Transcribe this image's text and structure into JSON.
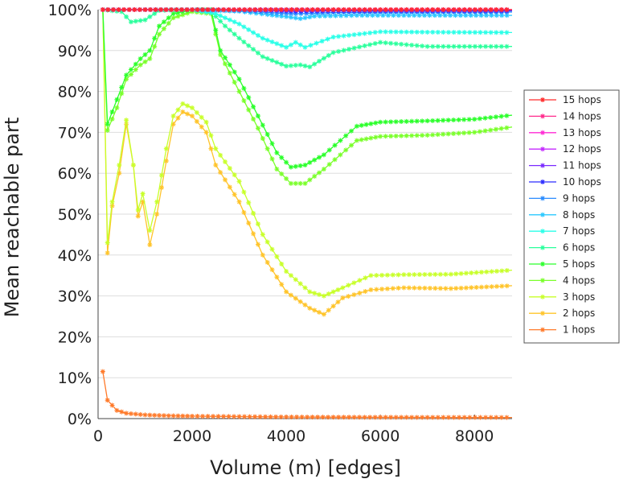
{
  "chart_data": {
    "type": "line",
    "xlabel": "Volume (m) [edges]",
    "ylabel": "Mean reachable part",
    "xlim": [
      0,
      8800
    ],
    "ylim": [
      0,
      100
    ],
    "x_ticks": [
      "0",
      "2000",
      "4000",
      "6000",
      "8000"
    ],
    "y_ticks": [
      "0%",
      "10%",
      "20%",
      "30%",
      "40%",
      "50%",
      "60%",
      "70%",
      "80%",
      "90%",
      "100%"
    ],
    "grid": "horizontal",
    "legend_position": "right",
    "series": [
      {
        "name": "15 hops",
        "color": "#ff2a2a",
        "points": [
          [
            100,
            100
          ],
          [
            1000,
            100
          ],
          [
            2000,
            100
          ],
          [
            3000,
            100
          ],
          [
            4000,
            100
          ],
          [
            5000,
            100
          ],
          [
            6000,
            100
          ],
          [
            7000,
            100
          ],
          [
            8800,
            100
          ]
        ]
      },
      {
        "name": "14 hops",
        "color": "#ff2a8c",
        "points": [
          [
            100,
            100
          ],
          [
            1000,
            100
          ],
          [
            2000,
            100
          ],
          [
            3000,
            100
          ],
          [
            4000,
            100
          ],
          [
            5000,
            100
          ],
          [
            6000,
            100
          ],
          [
            7000,
            100
          ],
          [
            8800,
            100
          ]
        ]
      },
      {
        "name": "13 hops",
        "color": "#ff2ad4",
        "points": [
          [
            100,
            100
          ],
          [
            1000,
            100
          ],
          [
            2000,
            100
          ],
          [
            3000,
            100
          ],
          [
            4000,
            100
          ],
          [
            5000,
            100
          ],
          [
            6000,
            100
          ],
          [
            7000,
            100
          ],
          [
            8800,
            100
          ]
        ]
      },
      {
        "name": "12 hops",
        "color": "#c42aff",
        "points": [
          [
            100,
            100
          ],
          [
            1000,
            100
          ],
          [
            2000,
            100
          ],
          [
            3000,
            100
          ],
          [
            4000,
            100
          ],
          [
            5000,
            100
          ],
          [
            6000,
            100
          ],
          [
            7000,
            100
          ],
          [
            8800,
            100
          ]
        ]
      },
      {
        "name": "11 hops",
        "color": "#7a2aff",
        "points": [
          [
            100,
            100
          ],
          [
            1000,
            100
          ],
          [
            2000,
            100
          ],
          [
            3000,
            100
          ],
          [
            3800,
            99.9
          ],
          [
            5000,
            99.9
          ],
          [
            6000,
            99.9
          ],
          [
            7000,
            99.9
          ],
          [
            8800,
            99.9
          ]
        ]
      },
      {
        "name": "10 hops",
        "color": "#2a2aff",
        "points": [
          [
            100,
            100
          ],
          [
            1000,
            100
          ],
          [
            2000,
            100
          ],
          [
            3000,
            100
          ],
          [
            3800,
            99.8
          ],
          [
            4200,
            99.6
          ],
          [
            5000,
            99.7
          ],
          [
            6000,
            99.7
          ],
          [
            7000,
            99.7
          ],
          [
            8800,
            99.7
          ]
        ]
      },
      {
        "name": "9 hops",
        "color": "#2a8cff",
        "points": [
          [
            100,
            100
          ],
          [
            1000,
            100
          ],
          [
            2000,
            100
          ],
          [
            3000,
            99.8
          ],
          [
            3800,
            99.2
          ],
          [
            4200,
            99
          ],
          [
            5000,
            99.3
          ],
          [
            6000,
            99.4
          ],
          [
            7000,
            99.4
          ],
          [
            8800,
            99.4
          ]
        ]
      },
      {
        "name": "8 hops",
        "color": "#2ac8ff",
        "points": [
          [
            100,
            100
          ],
          [
            1000,
            100
          ],
          [
            2000,
            100
          ],
          [
            2500,
            99.8
          ],
          [
            3000,
            99.6
          ],
          [
            3600,
            98.8
          ],
          [
            4000,
            98.3
          ],
          [
            4300,
            97.8
          ],
          [
            4600,
            98.4
          ],
          [
            5500,
            98.6
          ],
          [
            6500,
            98.6
          ],
          [
            8800,
            98.6
          ]
        ]
      },
      {
        "name": "7 hops",
        "color": "#2affe8",
        "points": [
          [
            100,
            100
          ],
          [
            1000,
            100
          ],
          [
            2000,
            100
          ],
          [
            2500,
            99
          ],
          [
            3000,
            96.5
          ],
          [
            3500,
            93
          ],
          [
            4000,
            90.8
          ],
          [
            4200,
            92
          ],
          [
            4400,
            90.8
          ],
          [
            5000,
            93.3
          ],
          [
            6000,
            94.6
          ],
          [
            7000,
            94.5
          ],
          [
            8800,
            94.4
          ]
        ]
      },
      {
        "name": "6 hops",
        "color": "#2aff9c",
        "points": [
          [
            100,
            100
          ],
          [
            500,
            99.5
          ],
          [
            700,
            97
          ],
          [
            1000,
            97.5
          ],
          [
            1300,
            99.8
          ],
          [
            2000,
            100
          ],
          [
            2400,
            99.5
          ],
          [
            2700,
            96
          ],
          [
            3000,
            93
          ],
          [
            3500,
            88.5
          ],
          [
            4000,
            86.2
          ],
          [
            4300,
            86.5
          ],
          [
            4500,
            86
          ],
          [
            5000,
            89.5
          ],
          [
            6000,
            92
          ],
          [
            7000,
            91
          ],
          [
            8800,
            91
          ]
        ]
      },
      {
        "name": "5 hops",
        "color": "#2aff2a",
        "points": [
          [
            100,
            100
          ],
          [
            200,
            72
          ],
          [
            400,
            78
          ],
          [
            600,
            84
          ],
          [
            900,
            88
          ],
          [
            1100,
            90
          ],
          [
            1300,
            96
          ],
          [
            1600,
            99
          ],
          [
            2000,
            100
          ],
          [
            2400,
            100
          ],
          [
            2600,
            90
          ],
          [
            3000,
            83
          ],
          [
            3400,
            74
          ],
          [
            3800,
            65
          ],
          [
            4100,
            61.5
          ],
          [
            4400,
            62
          ],
          [
            4800,
            64.5
          ],
          [
            5500,
            71.5
          ],
          [
            6000,
            72.5
          ],
          [
            7000,
            72.8
          ],
          [
            8000,
            73.2
          ],
          [
            8800,
            74.2
          ]
        ]
      },
      {
        "name": "4 hops",
        "color": "#7aff2a",
        "points": [
          [
            100,
            100
          ],
          [
            200,
            70.5
          ],
          [
            400,
            76
          ],
          [
            600,
            83
          ],
          [
            900,
            86.5
          ],
          [
            1100,
            88
          ],
          [
            1300,
            94
          ],
          [
            1600,
            98
          ],
          [
            2000,
            99.5
          ],
          [
            2400,
            99
          ],
          [
            2600,
            89
          ],
          [
            3000,
            80
          ],
          [
            3400,
            71
          ],
          [
            3800,
            61
          ],
          [
            4100,
            57.5
          ],
          [
            4400,
            57.5
          ],
          [
            4800,
            61
          ],
          [
            5500,
            68
          ],
          [
            6000,
            69
          ],
          [
            7000,
            69.3
          ],
          [
            8000,
            70
          ],
          [
            8800,
            71.3
          ]
        ]
      },
      {
        "name": "3 hops",
        "color": "#c8ff2a",
        "points": [
          [
            100,
            100
          ],
          [
            200,
            43
          ],
          [
            300,
            53
          ],
          [
            450,
            62
          ],
          [
            600,
            73
          ],
          [
            750,
            62
          ],
          [
            850,
            51
          ],
          [
            950,
            55
          ],
          [
            1100,
            46
          ],
          [
            1250,
            53
          ],
          [
            1450,
            66
          ],
          [
            1600,
            74
          ],
          [
            1800,
            77
          ],
          [
            2000,
            76
          ],
          [
            2300,
            72.5
          ],
          [
            2500,
            66
          ],
          [
            3000,
            58
          ],
          [
            3500,
            45
          ],
          [
            4000,
            36
          ],
          [
            4500,
            31
          ],
          [
            4800,
            30
          ],
          [
            5200,
            32
          ],
          [
            5800,
            35
          ],
          [
            6500,
            35.2
          ],
          [
            7500,
            35.3
          ],
          [
            8800,
            36.3
          ]
        ]
      },
      {
        "name": "2 hops",
        "color": "#ffc42a",
        "points": [
          [
            100,
            100
          ],
          [
            200,
            40.5
          ],
          [
            300,
            52
          ],
          [
            450,
            60
          ],
          [
            600,
            72
          ],
          [
            750,
            62
          ],
          [
            850,
            49.5
          ],
          [
            950,
            53
          ],
          [
            1100,
            42.5
          ],
          [
            1250,
            50
          ],
          [
            1450,
            63
          ],
          [
            1600,
            72
          ],
          [
            1800,
            75
          ],
          [
            2000,
            74
          ],
          [
            2300,
            70
          ],
          [
            2500,
            62
          ],
          [
            3000,
            53
          ],
          [
            3500,
            40
          ],
          [
            4000,
            31
          ],
          [
            4500,
            27
          ],
          [
            4800,
            25.5
          ],
          [
            5200,
            29.5
          ],
          [
            5800,
            31.5
          ],
          [
            6500,
            32
          ],
          [
            7500,
            31.8
          ],
          [
            8800,
            32.5
          ]
        ]
      },
      {
        "name": "1 hops",
        "color": "#ff7a2a",
        "points": [
          [
            100,
            11.5
          ],
          [
            200,
            4.5
          ],
          [
            400,
            2
          ],
          [
            600,
            1.3
          ],
          [
            1000,
            0.9
          ],
          [
            1500,
            0.7
          ],
          [
            2000,
            0.6
          ],
          [
            3000,
            0.5
          ],
          [
            4000,
            0.4
          ],
          [
            5000,
            0.35
          ],
          [
            6000,
            0.32
          ],
          [
            7000,
            0.3
          ],
          [
            8800,
            0.28
          ]
        ]
      }
    ]
  }
}
